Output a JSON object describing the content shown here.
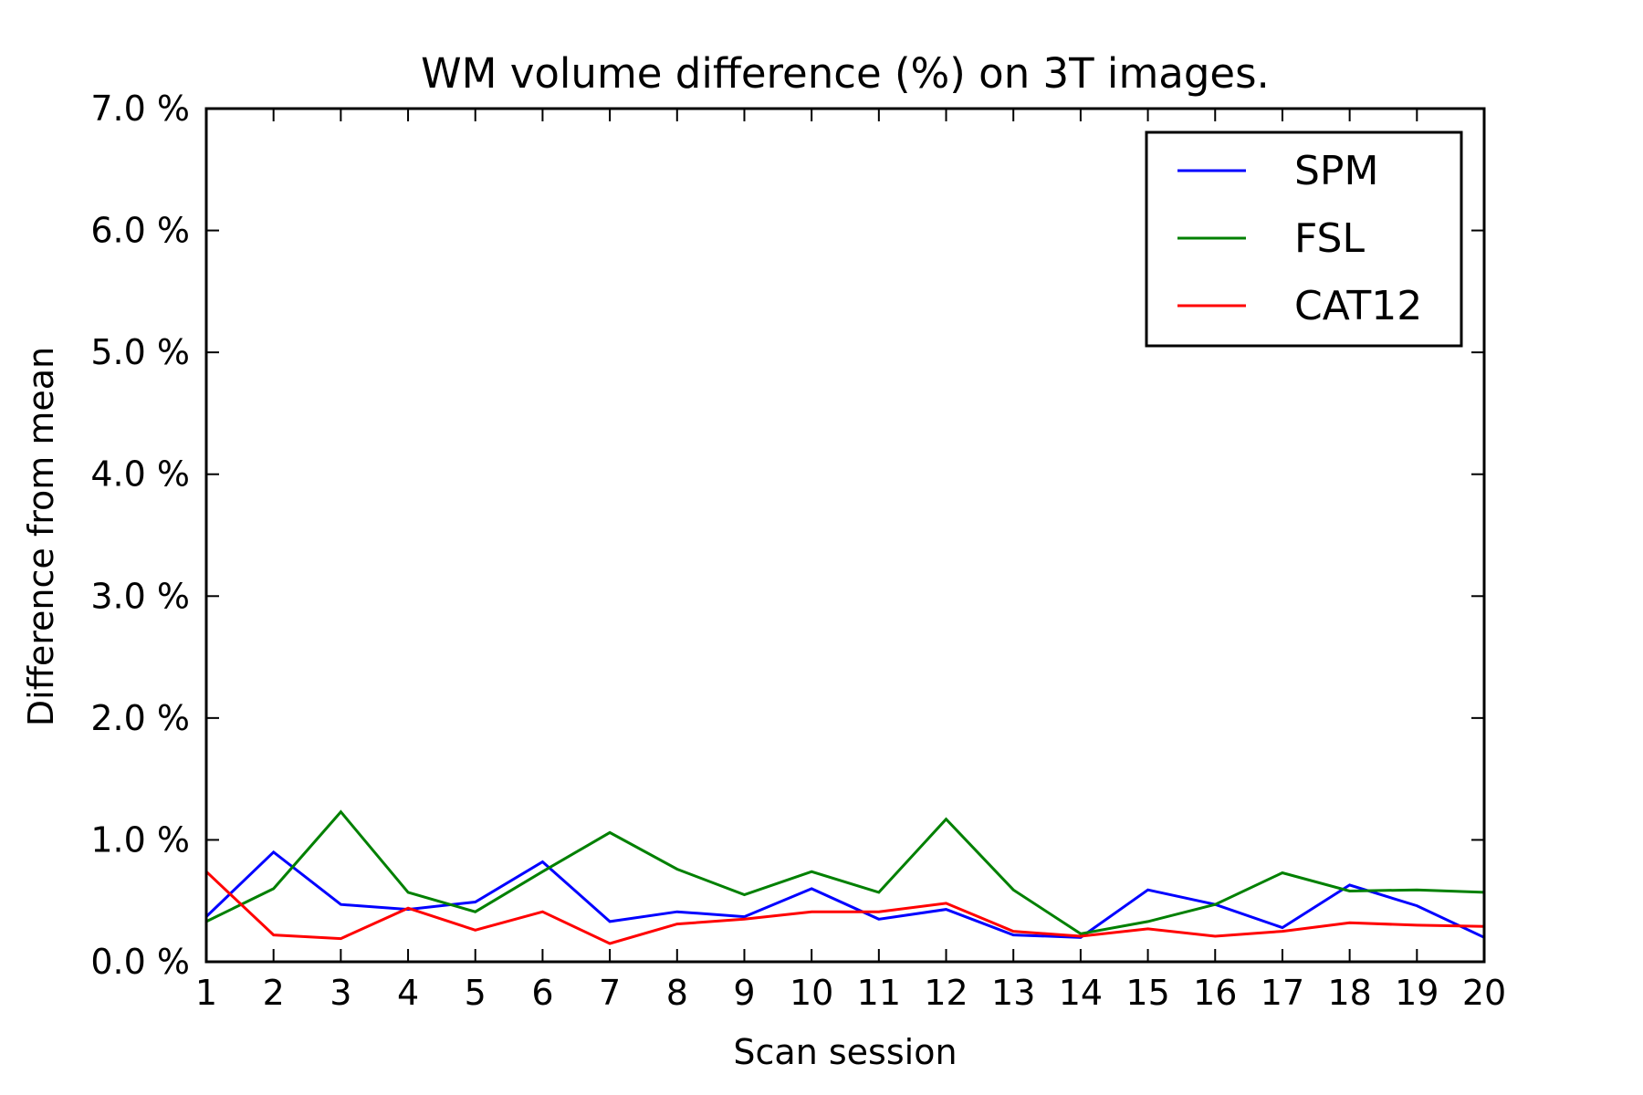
{
  "chart_data": {
    "type": "line",
    "title": "WM volume difference (%) on 3T images.",
    "xlabel": "Scan session",
    "ylabel": "Difference from mean",
    "x": [
      1,
      2,
      3,
      4,
      5,
      6,
      7,
      8,
      9,
      10,
      11,
      12,
      13,
      14,
      15,
      16,
      17,
      18,
      19,
      20
    ],
    "xlim": [
      1,
      20
    ],
    "ylim": [
      0.0,
      7.0
    ],
    "yticks": [
      0.0,
      1.0,
      2.0,
      3.0,
      4.0,
      5.0,
      6.0,
      7.0
    ],
    "ytick_labels": [
      "0.0 %",
      "1.0 %",
      "2.0 %",
      "3.0 %",
      "4.0 %",
      "5.0 %",
      "6.0 %",
      "7.0 %"
    ],
    "grid": false,
    "legend_position": "top-right",
    "series": [
      {
        "name": "SPM",
        "color": "#0000ff",
        "values": [
          0.37,
          0.9,
          0.47,
          0.43,
          0.49,
          0.82,
          0.33,
          0.41,
          0.37,
          0.6,
          0.35,
          0.43,
          0.22,
          0.2,
          0.59,
          0.47,
          0.28,
          0.63,
          0.46,
          0.2
        ]
      },
      {
        "name": "FSL",
        "color": "#008000",
        "values": [
          0.33,
          0.6,
          1.23,
          0.57,
          0.41,
          0.74,
          1.06,
          0.76,
          0.55,
          0.74,
          0.57,
          1.17,
          0.59,
          0.23,
          0.33,
          0.47,
          0.73,
          0.58,
          0.59,
          0.57
        ]
      },
      {
        "name": "CAT12",
        "color": "#ff0000",
        "values": [
          0.74,
          0.22,
          0.19,
          0.44,
          0.26,
          0.41,
          0.15,
          0.31,
          0.35,
          0.41,
          0.41,
          0.48,
          0.25,
          0.21,
          0.27,
          0.21,
          0.25,
          0.32,
          0.3,
          0.29
        ]
      }
    ]
  }
}
